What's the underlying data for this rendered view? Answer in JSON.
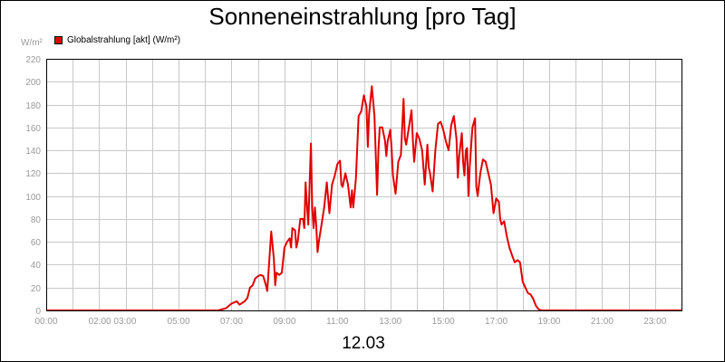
{
  "title": "Sonneneinstrahlung [pro Tag]",
  "date": "12.03",
  "colors": {
    "series": "#e00000",
    "grid": "#c8c8c8",
    "tick": "#9a9a9a"
  },
  "chart_data": {
    "type": "line",
    "title": "Sonneneinstrahlung [pro Tag]",
    "ylabel": "W/m²",
    "xlabel": "12.03",
    "ylim": [
      0,
      220
    ],
    "xlim": [
      0,
      24
    ],
    "yticks": [
      0,
      20,
      40,
      60,
      80,
      100,
      120,
      140,
      160,
      180,
      200,
      220
    ],
    "xticks": [
      {
        "x": 0,
        "label": "00:00"
      },
      {
        "x": 2.5,
        "label": "02:00 03:00"
      },
      {
        "x": 5,
        "label": "05:00"
      },
      {
        "x": 7,
        "label": "07:00"
      },
      {
        "x": 9,
        "label": "09:00"
      },
      {
        "x": 11,
        "label": "11:00"
      },
      {
        "x": 13,
        "label": "13:00"
      },
      {
        "x": 15,
        "label": "15:00"
      },
      {
        "x": 17,
        "label": "17:00"
      },
      {
        "x": 19,
        "label": "19:00"
      },
      {
        "x": 21,
        "label": "21:00"
      },
      {
        "x": 23,
        "label": "23:00"
      }
    ],
    "grid": true,
    "legend": "top-left",
    "series": [
      {
        "name": "Globalstrahlung [akt] (W/m²)",
        "color": "#e00000",
        "points": [
          [
            0,
            0
          ],
          [
            6.5,
            0
          ],
          [
            6.8,
            2
          ],
          [
            7.0,
            6
          ],
          [
            7.2,
            8
          ],
          [
            7.3,
            5
          ],
          [
            7.5,
            8
          ],
          [
            7.6,
            11
          ],
          [
            7.7,
            20
          ],
          [
            7.8,
            22
          ],
          [
            7.9,
            28
          ],
          [
            8.0,
            30
          ],
          [
            8.1,
            31
          ],
          [
            8.2,
            30
          ],
          [
            8.3,
            22
          ],
          [
            8.35,
            17
          ],
          [
            8.5,
            69
          ],
          [
            8.6,
            45
          ],
          [
            8.65,
            22
          ],
          [
            8.7,
            33
          ],
          [
            8.8,
            31
          ],
          [
            8.9,
            33
          ],
          [
            9.0,
            55
          ],
          [
            9.1,
            60
          ],
          [
            9.2,
            63
          ],
          [
            9.25,
            55
          ],
          [
            9.3,
            72
          ],
          [
            9.4,
            70
          ],
          [
            9.45,
            55
          ],
          [
            9.5,
            60
          ],
          [
            9.6,
            80
          ],
          [
            9.7,
            80
          ],
          [
            9.75,
            72
          ],
          [
            9.8,
            112
          ],
          [
            9.85,
            92
          ],
          [
            9.9,
            75
          ],
          [
            10.0,
            146
          ],
          [
            10.05,
            90
          ],
          [
            10.1,
            72
          ],
          [
            10.15,
            90
          ],
          [
            10.2,
            75
          ],
          [
            10.25,
            51
          ],
          [
            10.3,
            60
          ],
          [
            10.4,
            75
          ],
          [
            10.5,
            90
          ],
          [
            10.6,
            112
          ],
          [
            10.7,
            85
          ],
          [
            10.8,
            110
          ],
          [
            10.9,
            118
          ],
          [
            11.0,
            128
          ],
          [
            11.1,
            131
          ],
          [
            11.15,
            110
          ],
          [
            11.2,
            108
          ],
          [
            11.3,
            120
          ],
          [
            11.4,
            110
          ],
          [
            11.5,
            90
          ],
          [
            11.55,
            105
          ],
          [
            11.6,
            90
          ],
          [
            11.7,
            115
          ],
          [
            11.8,
            170
          ],
          [
            11.9,
            174
          ],
          [
            12.0,
            188
          ],
          [
            12.1,
            178
          ],
          [
            12.15,
            143
          ],
          [
            12.2,
            172
          ],
          [
            12.3,
            196
          ],
          [
            12.4,
            170
          ],
          [
            12.5,
            101
          ],
          [
            12.55,
            140
          ],
          [
            12.6,
            160
          ],
          [
            12.7,
            160
          ],
          [
            12.8,
            148
          ],
          [
            12.85,
            135
          ],
          [
            12.9,
            148
          ],
          [
            13.0,
            158
          ],
          [
            13.05,
            140
          ],
          [
            13.1,
            118
          ],
          [
            13.2,
            102
          ],
          [
            13.3,
            130
          ],
          [
            13.4,
            136
          ],
          [
            13.5,
            185
          ],
          [
            13.55,
            150
          ],
          [
            13.6,
            145
          ],
          [
            13.7,
            160
          ],
          [
            13.8,
            175
          ],
          [
            13.85,
            150
          ],
          [
            13.9,
            130
          ],
          [
            14.0,
            155
          ],
          [
            14.1,
            150
          ],
          [
            14.2,
            140
          ],
          [
            14.3,
            110
          ],
          [
            14.4,
            145
          ],
          [
            14.45,
            125
          ],
          [
            14.5,
            120
          ],
          [
            14.6,
            104
          ],
          [
            14.7,
            140
          ],
          [
            14.8,
            163
          ],
          [
            14.9,
            165
          ],
          [
            15.0,
            158
          ],
          [
            15.1,
            148
          ],
          [
            15.2,
            140
          ],
          [
            15.3,
            162
          ],
          [
            15.4,
            170
          ],
          [
            15.5,
            150
          ],
          [
            15.55,
            116
          ],
          [
            15.6,
            135
          ],
          [
            15.7,
            155
          ],
          [
            15.75,
            130
          ],
          [
            15.8,
            118
          ],
          [
            15.85,
            140
          ],
          [
            15.9,
            142
          ],
          [
            15.95,
            100
          ],
          [
            16.0,
            125
          ],
          [
            16.1,
            160
          ],
          [
            16.2,
            168
          ],
          [
            16.25,
            108
          ],
          [
            16.3,
            100
          ],
          [
            16.4,
            120
          ],
          [
            16.5,
            132
          ],
          [
            16.6,
            130
          ],
          [
            16.7,
            120
          ],
          [
            16.8,
            110
          ],
          [
            16.9,
            85
          ],
          [
            17.0,
            98
          ],
          [
            17.1,
            95
          ],
          [
            17.15,
            80
          ],
          [
            17.2,
            75
          ],
          [
            17.3,
            78
          ],
          [
            17.4,
            65
          ],
          [
            17.5,
            55
          ],
          [
            17.6,
            48
          ],
          [
            17.7,
            42
          ],
          [
            17.8,
            44
          ],
          [
            17.9,
            42
          ],
          [
            18.0,
            25
          ],
          [
            18.1,
            20
          ],
          [
            18.2,
            15
          ],
          [
            18.3,
            14
          ],
          [
            18.4,
            10
          ],
          [
            18.5,
            4
          ],
          [
            18.6,
            1
          ],
          [
            18.7,
            0
          ],
          [
            24,
            0
          ]
        ]
      }
    ]
  }
}
